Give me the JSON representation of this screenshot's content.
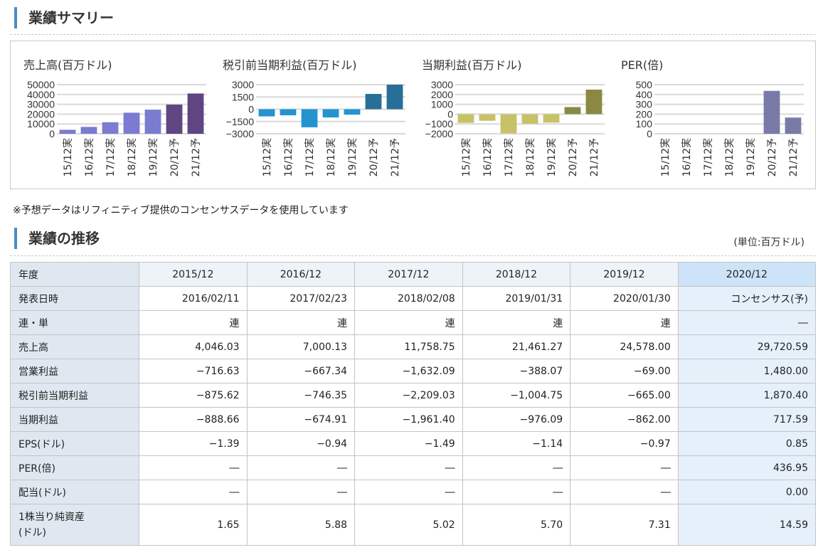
{
  "summary": {
    "title": "業績サマリー",
    "charts": [
      {
        "title": "売上高(百万ドル)"
      },
      {
        "title": "税引前当期利益(百万ドル)"
      },
      {
        "title": "当期利益(百万ドル)"
      },
      {
        "title": "PER(倍)"
      }
    ]
  },
  "chart_data": [
    {
      "type": "bar",
      "title": "売上高(百万ドル)",
      "categories": [
        "15/12実",
        "16/12実",
        "17/12実",
        "18/12実",
        "19/12実",
        "20/12予",
        "21/12予"
      ],
      "values": [
        4046,
        7000,
        11759,
        21461,
        24578,
        29721,
        41000
      ],
      "yticks": [
        0,
        10000,
        20000,
        30000,
        40000,
        50000
      ],
      "ylim": [
        0,
        50000
      ],
      "colors": {
        "actual": "#7b7bd1",
        "forecast": "#5f4682"
      },
      "grid": true
    },
    {
      "type": "bar",
      "title": "税引前当期利益(百万ドル)",
      "categories": [
        "15/12実",
        "16/12実",
        "17/12実",
        "18/12実",
        "19/12実",
        "20/12予",
        "21/12予"
      ],
      "values": [
        -876,
        -746,
        -2209,
        -1005,
        -665,
        1870,
        3000
      ],
      "yticks": [
        -3000,
        -1500,
        0,
        1500,
        3000
      ],
      "ylim": [
        -3000,
        3000
      ],
      "colors": {
        "actual": "#2394cf",
        "forecast": "#276e99"
      },
      "grid": true
    },
    {
      "type": "bar",
      "title": "当期利益(百万ドル)",
      "categories": [
        "15/12実",
        "16/12実",
        "17/12実",
        "18/12実",
        "19/12実",
        "20/12予",
        "21/12予"
      ],
      "values": [
        -889,
        -675,
        -1961,
        -976,
        -862,
        718,
        2500
      ],
      "yticks": [
        -2000,
        -1000,
        0,
        1000,
        2000,
        3000
      ],
      "ylim": [
        -2000,
        3000
      ],
      "colors": {
        "actual": "#c7c168",
        "forecast": "#898944"
      },
      "grid": true
    },
    {
      "type": "bar",
      "title": "PER(倍)",
      "categories": [
        "15/12実",
        "16/12実",
        "17/12実",
        "18/12実",
        "19/12実",
        "20/12予",
        "21/12予"
      ],
      "values": [
        null,
        null,
        null,
        null,
        null,
        437,
        165
      ],
      "yticks": [
        0,
        100,
        200,
        300,
        400,
        500
      ],
      "ylim": [
        0,
        500
      ],
      "colors": {
        "actual": "#7a7aa8",
        "forecast": "#7a7aa8"
      },
      "grid": true
    }
  ],
  "note": "※予想データはリフィニティブ提供のコンセンサスデータを使用しています",
  "history": {
    "title": "業績の推移",
    "unit": "(単位:百万ドル)",
    "header": {
      "label": "年度",
      "columns": [
        "2015/12",
        "2016/12",
        "2017/12",
        "2018/12",
        "2019/12",
        "2020/12"
      ]
    },
    "rows": [
      {
        "label": "発表日時",
        "values": [
          "2016/02/11",
          "2017/02/23",
          "2018/02/08",
          "2019/01/31",
          "2020/01/30",
          "コンセンサス(予)"
        ]
      },
      {
        "label": "連・単",
        "values": [
          "連",
          "連",
          "連",
          "連",
          "連",
          "―"
        ]
      },
      {
        "label": "売上高",
        "values": [
          "4,046.03",
          "7,000.13",
          "11,758.75",
          "21,461.27",
          "24,578.00",
          "29,720.59"
        ]
      },
      {
        "label": "営業利益",
        "values": [
          "−716.63",
          "−667.34",
          "−1,632.09",
          "−388.07",
          "−69.00",
          "1,480.00"
        ]
      },
      {
        "label": "税引前当期利益",
        "values": [
          "−875.62",
          "−746.35",
          "−2,209.03",
          "−1,004.75",
          "−665.00",
          "1,870.40"
        ]
      },
      {
        "label": "当期利益",
        "values": [
          "−888.66",
          "−674.91",
          "−1,961.40",
          "−976.09",
          "−862.00",
          "717.59"
        ]
      },
      {
        "label": "EPS(ドル)",
        "values": [
          "−1.39",
          "−0.94",
          "−1.49",
          "−1.14",
          "−0.97",
          "0.85"
        ]
      },
      {
        "label": "PER(倍)",
        "values": [
          "―",
          "―",
          "―",
          "―",
          "―",
          "436.95"
        ]
      },
      {
        "label": "配当(ドル)",
        "values": [
          "―",
          "―",
          "―",
          "―",
          "―",
          "0.00"
        ]
      }
    ],
    "last_row": {
      "label_line1": "1株当り純資産",
      "label_line2": "(ドル)",
      "values": [
        "1.65",
        "5.88",
        "5.02",
        "5.70",
        "7.31",
        "14.59"
      ]
    }
  }
}
